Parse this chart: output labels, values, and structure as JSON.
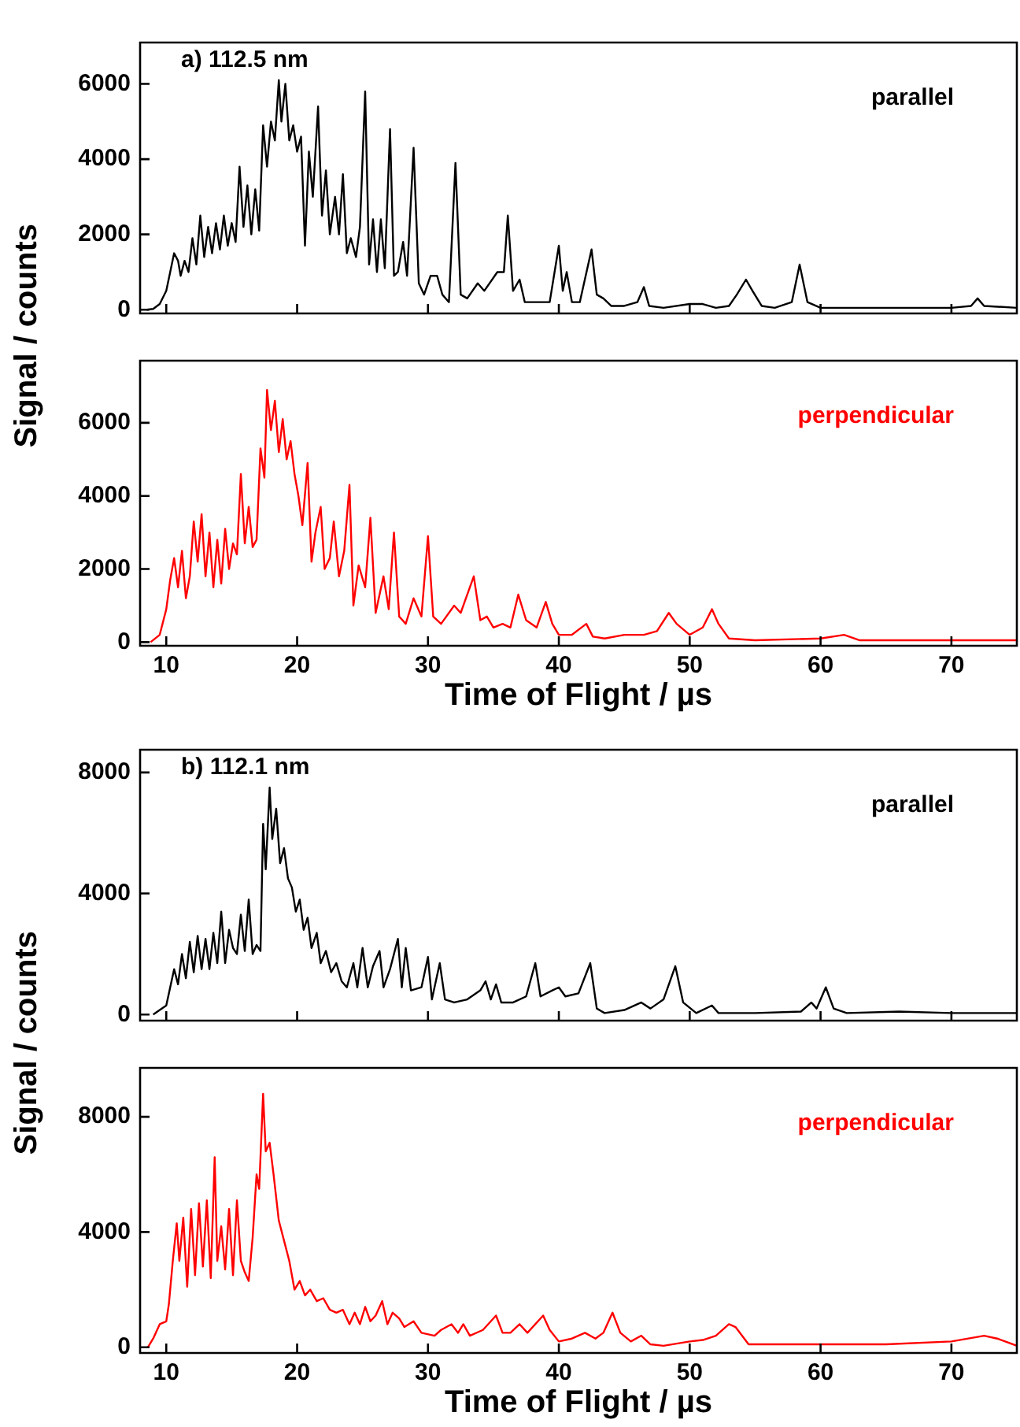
{
  "chart_data": [
    {
      "type": "line",
      "title": "a) 112.5 nm",
      "ylabel": "Signal / counts",
      "xlim": [
        8,
        75
      ],
      "xticks": [
        10,
        20,
        30,
        40,
        50,
        60,
        70
      ],
      "ylim": [
        -100,
        7100
      ],
      "yticks": [
        0,
        2000,
        4000,
        6000
      ],
      "tick_labels": "y",
      "series": [
        {
          "name": "parallel",
          "color": "#000000",
          "x": [
            8.5,
            9,
            9.5,
            10,
            10.3,
            10.6,
            10.9,
            11.1,
            11.4,
            11.7,
            12,
            12.3,
            12.6,
            12.9,
            13.2,
            13.5,
            13.8,
            14.1,
            14.4,
            14.7,
            15,
            15.3,
            15.6,
            15.9,
            16.2,
            16.5,
            16.8,
            17.1,
            17.4,
            17.7,
            18,
            18.3,
            18.6,
            18.8,
            19.1,
            19.4,
            19.7,
            20,
            20.3,
            20.6,
            20.9,
            21.2,
            21.6,
            21.9,
            22.2,
            22.5,
            22.9,
            23.2,
            23.5,
            23.8,
            24.1,
            24.5,
            24.8,
            25.2,
            25.5,
            25.8,
            26.1,
            26.4,
            26.7,
            27.1,
            27.4,
            27.7,
            28.1,
            28.4,
            28.9,
            29.3,
            29.7,
            30.2,
            30.7,
            31.1,
            31.6,
            32.1,
            32.5,
            33,
            33.8,
            34.3,
            35.3,
            35.8,
            36.1,
            36.5,
            37,
            37.4,
            38,
            38.7,
            39.3,
            40,
            40.3,
            40.6,
            41,
            41.6,
            42.5,
            42.9,
            43.4,
            44,
            45,
            46,
            46.5,
            46.9,
            48,
            50,
            51,
            52,
            53,
            53.6,
            54.3,
            54.8,
            55.5,
            56.5,
            57.8,
            58.4,
            59,
            60,
            65,
            70,
            71.5,
            72,
            72.5,
            75
          ],
          "values": [
            0,
            20,
            150,
            500,
            1000,
            1500,
            1300,
            900,
            1300,
            1000,
            1900,
            1200,
            2500,
            1400,
            2200,
            1500,
            2300,
            1600,
            2500,
            1700,
            2300,
            1800,
            3800,
            2200,
            3300,
            2000,
            3200,
            2100,
            4900,
            3800,
            5000,
            4500,
            6100,
            5000,
            6000,
            4500,
            4900,
            4200,
            4600,
            1700,
            4200,
            3000,
            5400,
            2500,
            3700,
            2000,
            3000,
            2000,
            3600,
            1500,
            1900,
            1400,
            2200,
            5800,
            1200,
            2400,
            1000,
            2400,
            1100,
            4800,
            900,
            1000,
            1800,
            900,
            4300,
            700,
            400,
            900,
            900,
            400,
            200,
            3900,
            400,
            300,
            700,
            500,
            1000,
            1000,
            2500,
            500,
            800,
            200,
            200,
            200,
            200,
            1700,
            500,
            1000,
            200,
            200,
            1600,
            400,
            300,
            100,
            100,
            200,
            600,
            100,
            50,
            150,
            150,
            50,
            100,
            400,
            800,
            500,
            100,
            50,
            200,
            1200,
            200,
            50,
            50,
            50,
            100,
            300,
            100,
            50
          ]
        }
      ]
    },
    {
      "type": "line",
      "xlabel": "Time of Flight / µs",
      "xlim": [
        8,
        75
      ],
      "xticks": [
        10,
        20,
        30,
        40,
        50,
        60,
        70
      ],
      "ylim": [
        -100,
        7700
      ],
      "yticks": [
        0,
        2000,
        4000,
        6000
      ],
      "series": [
        {
          "name": "perpendicular",
          "color": "#ff0000",
          "x": [
            8.8,
            9.5,
            10,
            10.3,
            10.6,
            10.9,
            11.2,
            11.5,
            11.8,
            12.1,
            12.4,
            12.7,
            13,
            13.3,
            13.6,
            13.9,
            14.2,
            14.5,
            14.8,
            15.1,
            15.4,
            15.7,
            16,
            16.3,
            16.6,
            16.9,
            17.2,
            17.5,
            17.7,
            18,
            18.3,
            18.6,
            18.9,
            19.2,
            19.5,
            19.8,
            20.1,
            20.4,
            20.8,
            21.1,
            21.4,
            21.8,
            22.1,
            22.5,
            22.8,
            23.2,
            23.6,
            24,
            24.3,
            24.7,
            25.2,
            25.6,
            26,
            26.6,
            27,
            27.4,
            27.8,
            28.3,
            28.9,
            29.5,
            30,
            30.4,
            31,
            32,
            32.5,
            33.5,
            34,
            34.5,
            35,
            35.7,
            36.3,
            36.9,
            37.5,
            38.3,
            39,
            39.5,
            40,
            41,
            42.1,
            42.6,
            43.5,
            45,
            46.5,
            47.5,
            48.4,
            49,
            50,
            51,
            51.7,
            52.2,
            53,
            55,
            60,
            61.8,
            63,
            70,
            75
          ],
          "values": [
            0,
            200,
            900,
            1700,
            2300,
            1500,
            2500,
            1200,
            1800,
            3300,
            2200,
            3500,
            1800,
            3000,
            1500,
            2800,
            1600,
            3100,
            2000,
            2700,
            2400,
            4600,
            2700,
            3700,
            2600,
            2800,
            5300,
            4500,
            6900,
            5800,
            6600,
            5200,
            6100,
            5000,
            5500,
            4600,
            4000,
            3200,
            4900,
            2200,
            3000,
            3700,
            2000,
            2300,
            3300,
            1800,
            2500,
            4300,
            1000,
            2100,
            1500,
            3400,
            800,
            1800,
            900,
            3000,
            700,
            500,
            1200,
            700,
            2900,
            700,
            500,
            1000,
            800,
            1800,
            600,
            700,
            400,
            500,
            400,
            1300,
            600,
            400,
            1100,
            500,
            200,
            200,
            500,
            150,
            100,
            200,
            200,
            300,
            800,
            500,
            200,
            400,
            900,
            500,
            100,
            50,
            100,
            200,
            50,
            50,
            50
          ]
        }
      ]
    },
    {
      "type": "line",
      "title": "b) 112.1 nm",
      "ylabel": "Signal / counts",
      "xlim": [
        8,
        75
      ],
      "xticks": [
        10,
        20,
        30,
        40,
        50,
        60,
        70
      ],
      "ylim": [
        -200,
        8750
      ],
      "yticks": [
        0,
        4000,
        8000
      ],
      "tick_labels": "y",
      "series": [
        {
          "name": "parallel",
          "color": "#000000",
          "x": [
            9,
            9.5,
            10,
            10.3,
            10.6,
            10.9,
            11.2,
            11.5,
            11.8,
            12.1,
            12.4,
            12.7,
            13,
            13.3,
            13.6,
            13.9,
            14.2,
            14.5,
            14.8,
            15.1,
            15.4,
            15.7,
            16,
            16.3,
            16.6,
            16.9,
            17.2,
            17.4,
            17.6,
            17.9,
            18.1,
            18.4,
            18.7,
            19,
            19.3,
            19.6,
            19.9,
            20.2,
            20.5,
            20.8,
            21.1,
            21.5,
            21.8,
            22.2,
            22.6,
            23,
            23.4,
            23.8,
            24.3,
            24.6,
            25,
            25.4,
            25.8,
            26.3,
            26.6,
            27.1,
            27.7,
            28,
            28.3,
            28.7,
            29.5,
            30,
            30.3,
            30.9,
            31.3,
            32,
            33,
            34,
            34.4,
            34.8,
            35.2,
            35.6,
            36.5,
            37.5,
            38.2,
            38.6,
            39.5,
            40,
            40.5,
            41.5,
            42.4,
            42.9,
            43.5,
            45,
            46.3,
            47,
            48,
            48.9,
            49.5,
            50.5,
            51.7,
            52.2,
            55,
            58.5,
            59.3,
            59.7,
            60.4,
            61,
            62,
            66,
            70,
            75
          ],
          "values": [
            0,
            150,
            300,
            900,
            1500,
            1000,
            2000,
            1200,
            2400,
            1400,
            2600,
            1500,
            2500,
            1500,
            2700,
            1700,
            3400,
            1700,
            2800,
            2200,
            2000,
            3300,
            2100,
            3800,
            2000,
            2300,
            2100,
            6300,
            4800,
            7500,
            5800,
            6800,
            5000,
            5500,
            4500,
            4200,
            3400,
            3800,
            2800,
            3200,
            2200,
            2700,
            1700,
            2100,
            1400,
            1700,
            1100,
            900,
            1700,
            900,
            2200,
            900,
            1600,
            2100,
            900,
            1500,
            2500,
            900,
            2200,
            800,
            900,
            1900,
            500,
            1700,
            500,
            400,
            500,
            800,
            1100,
            500,
            1000,
            400,
            400,
            600,
            1700,
            600,
            800,
            900,
            600,
            700,
            1700,
            200,
            50,
            150,
            400,
            200,
            500,
            1600,
            400,
            50,
            300,
            50,
            50,
            100,
            400,
            200,
            900,
            200,
            50,
            100,
            50,
            50
          ]
        }
      ]
    },
    {
      "type": "line",
      "xlabel": "Time of Flight / µs",
      "xlim": [
        8,
        75
      ],
      "xticks": [
        10,
        20,
        30,
        40,
        50,
        60,
        70
      ],
      "ylim": [
        -200,
        9700
      ],
      "yticks": [
        0,
        4000,
        8000
      ],
      "series": [
        {
          "name": "perpendicular",
          "color": "#ff0000",
          "x": [
            8.6,
            9,
            9.5,
            10,
            10.2,
            10.5,
            10.8,
            11,
            11.3,
            11.6,
            11.9,
            12.2,
            12.5,
            12.8,
            13.1,
            13.4,
            13.7,
            13.9,
            14.2,
            14.5,
            14.8,
            15.1,
            15.4,
            15.7,
            16,
            16.3,
            16.6,
            16.9,
            17.1,
            17.4,
            17.6,
            17.9,
            18.2,
            18.6,
            19,
            19.4,
            19.8,
            20.2,
            20.6,
            21,
            21.5,
            22,
            22.5,
            23,
            23.5,
            24,
            24.4,
            24.8,
            25.2,
            25.6,
            26,
            26.5,
            26.9,
            27.3,
            27.8,
            28.2,
            28.9,
            29.5,
            30.5,
            31,
            31.8,
            32.3,
            32.7,
            33.2,
            34.2,
            35.2,
            35.7,
            36.3,
            37,
            37.6,
            38.8,
            39.3,
            40,
            41,
            42,
            42.8,
            43.4,
            44.1,
            44.7,
            45.5,
            46.3,
            47,
            48,
            50,
            51,
            52,
            53,
            53.5,
            54.5,
            56,
            60,
            65,
            70,
            72.5,
            73.5,
            75
          ],
          "values": [
            0,
            300,
            800,
            900,
            1500,
            3000,
            4300,
            3000,
            4500,
            2100,
            4800,
            2500,
            5000,
            2800,
            5100,
            2400,
            6600,
            3000,
            4200,
            2700,
            4800,
            2500,
            5100,
            3000,
            2600,
            2300,
            3800,
            6000,
            5500,
            8800,
            6800,
            7100,
            6000,
            4400,
            3700,
            3000,
            2000,
            2300,
            1800,
            2000,
            1600,
            1700,
            1300,
            1200,
            1300,
            800,
            1200,
            800,
            1400,
            900,
            1100,
            1600,
            800,
            1200,
            1000,
            700,
            900,
            500,
            400,
            600,
            800,
            500,
            800,
            400,
            600,
            1100,
            500,
            500,
            800,
            500,
            1100,
            600,
            200,
            300,
            500,
            300,
            500,
            1200,
            500,
            200,
            400,
            100,
            50,
            200,
            250,
            400,
            800,
            700,
            100,
            100,
            100,
            100,
            200,
            400,
            300,
            50
          ]
        }
      ]
    }
  ]
}
